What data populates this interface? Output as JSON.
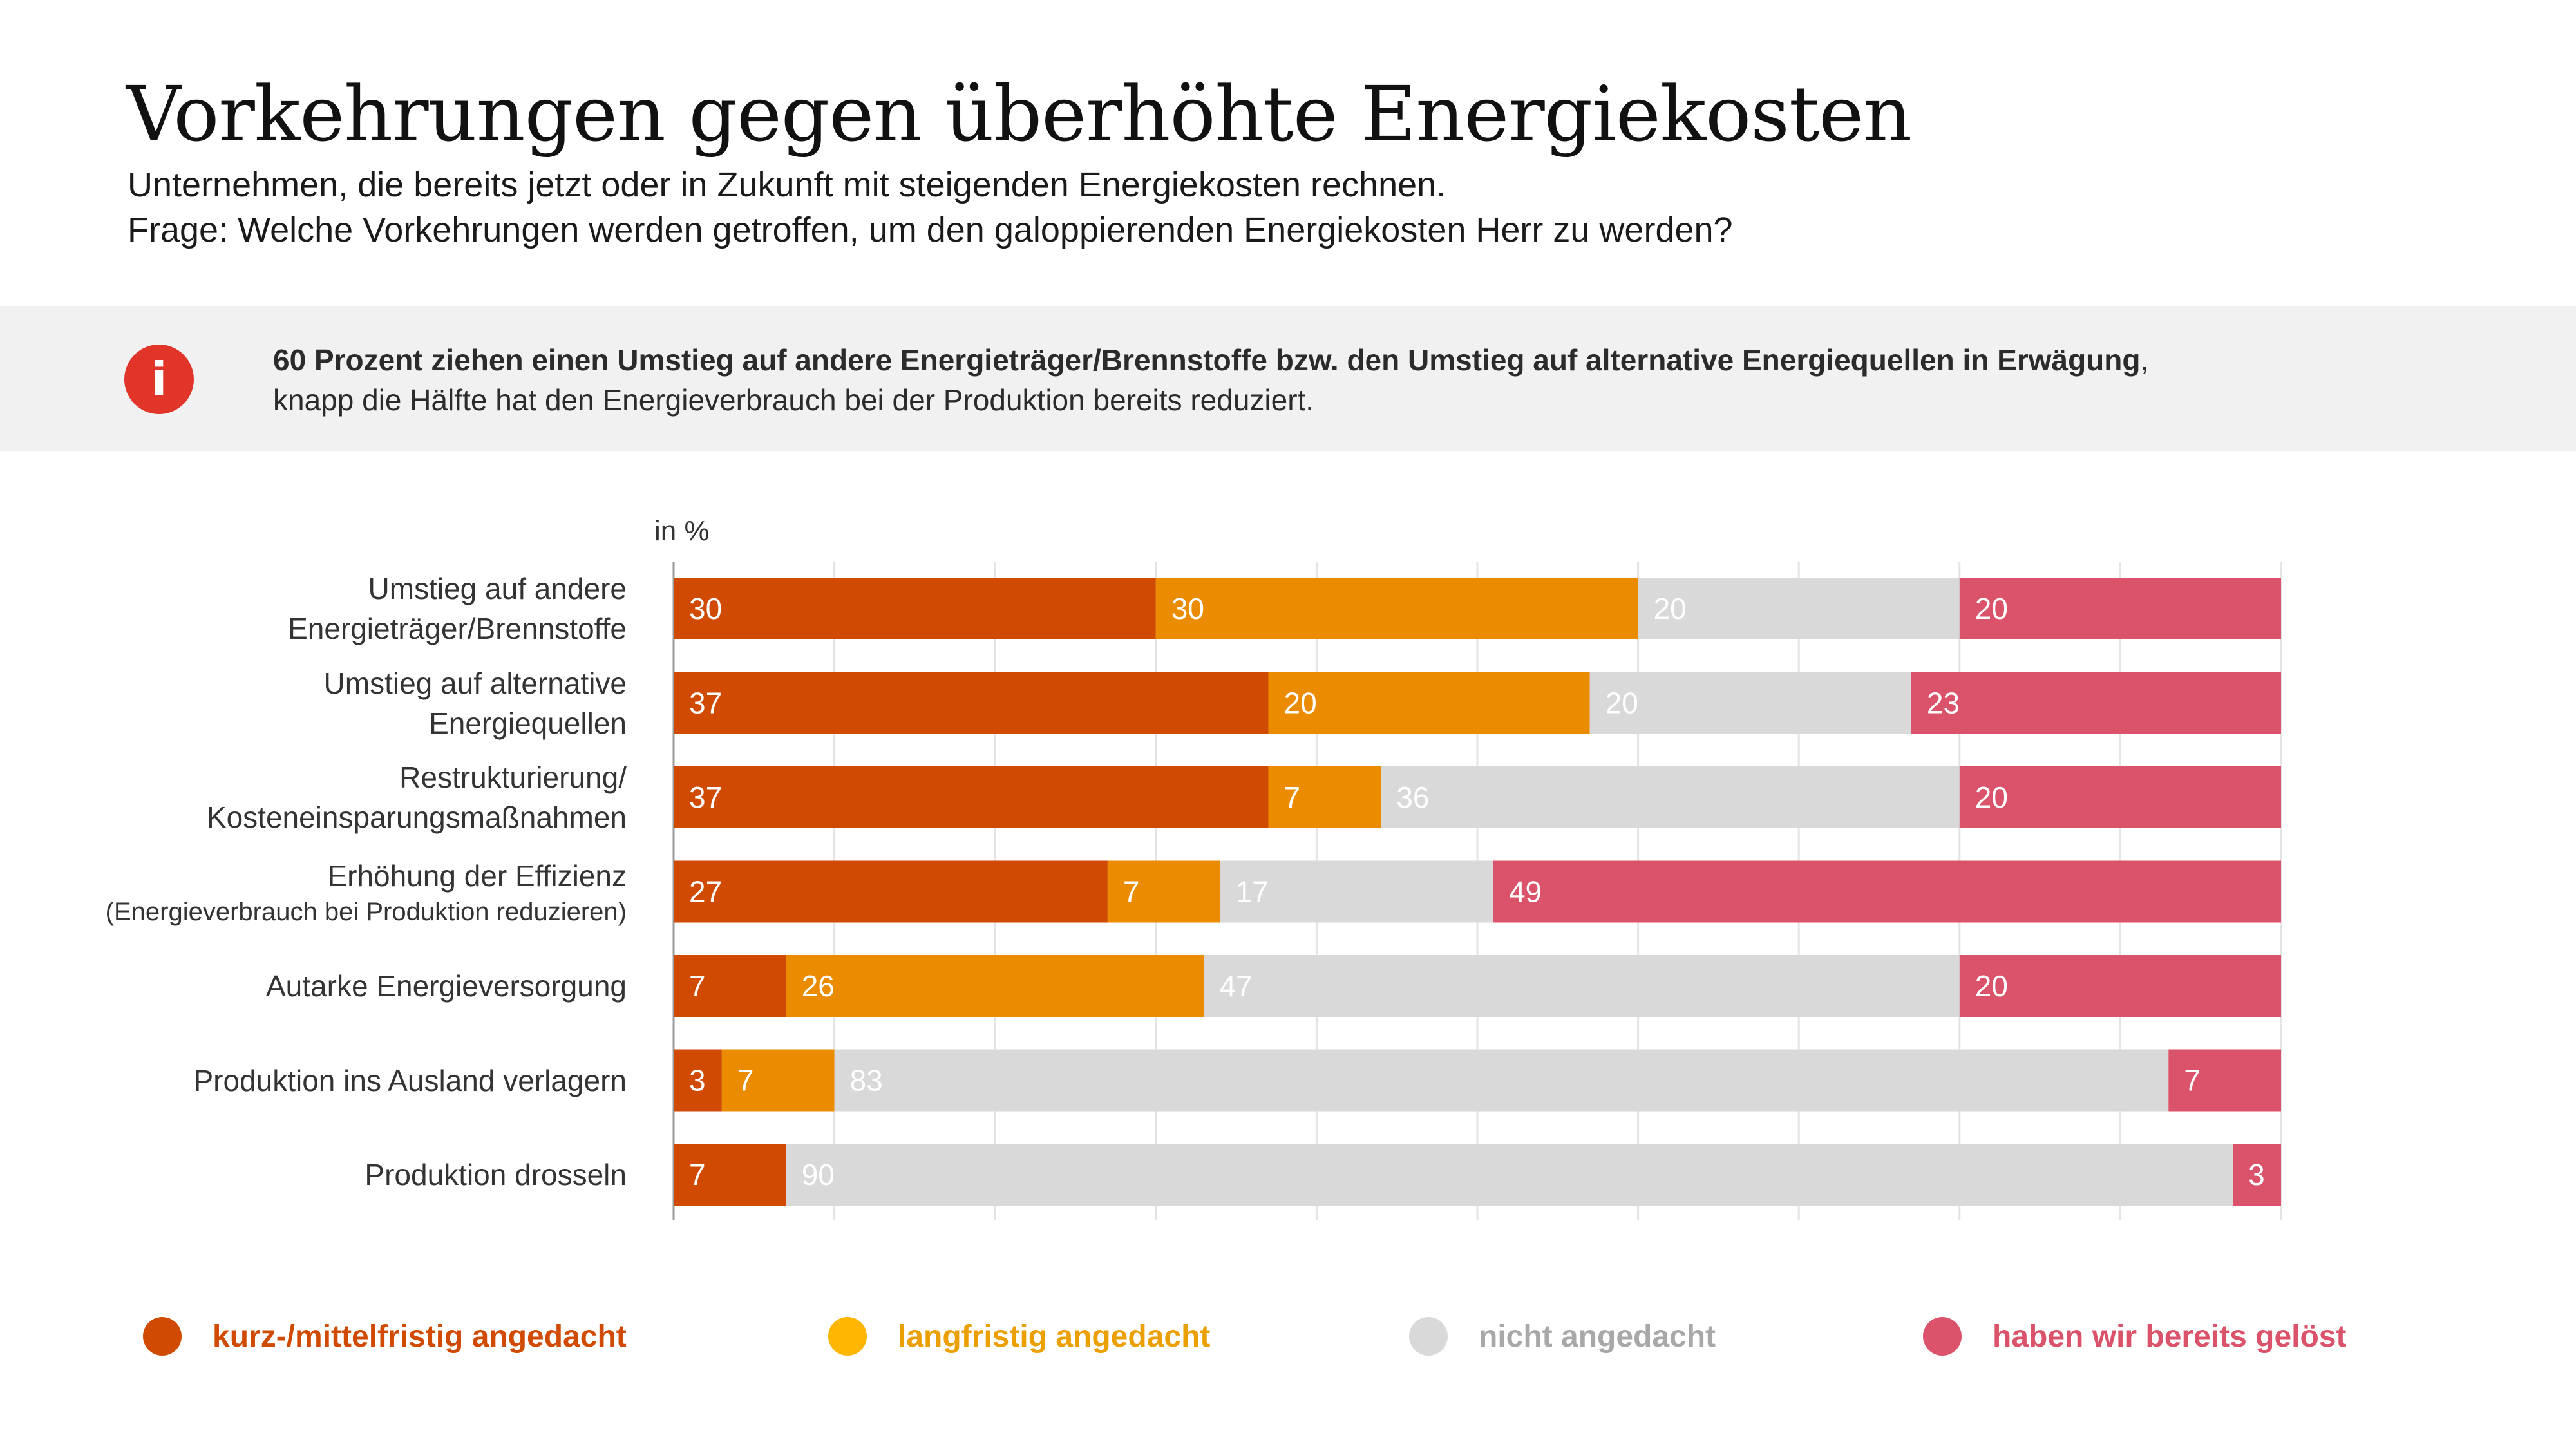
{
  "header": {
    "title": "Vorkehrungen gegen überhöhte Energiekosten",
    "subtitle_line1": "Unternehmen, die bereits jetzt oder in Zukunft mit steigenden Energiekosten rechnen.",
    "subtitle_line2": "Frage: Welche Vorkehrungen werden getroffen, um den galoppierenden Energiekosten Herr zu werden?"
  },
  "banner": {
    "icon": "info-icon",
    "line1_bold": "60 Prozent ziehen einen Umstieg auf andere Energieträger/Brennstoffe bzw. den Umstieg auf alternative Energiequellen in Erwägung",
    "line1_rest": ",",
    "line2": "knapp die Hälfte hat den Energieverbrauch bei der Produktion bereits reduziert."
  },
  "chart_data": {
    "type": "bar",
    "orientation": "horizontal",
    "stacked": true,
    "unit_label": "in %",
    "xlim": [
      0,
      100
    ],
    "grid": true,
    "legend_position": "bottom",
    "categories": [
      {
        "line1": "Umstieg auf andere",
        "line2": "Energieträger/Brennstoffe",
        "sub": ""
      },
      {
        "line1": "Umstieg auf alternative",
        "line2": "Energiequellen",
        "sub": ""
      },
      {
        "line1": "Restrukturierung/",
        "line2": "Kosteneinsparungsmaßnahmen",
        "sub": ""
      },
      {
        "line1": "Erhöhung der Effizienz",
        "line2": "",
        "sub": "(Energieverbrauch bei Produktion reduzieren)"
      },
      {
        "line1": "Autarke Energieversorgung",
        "line2": "",
        "sub": ""
      },
      {
        "line1": "Produktion ins Ausland verlagern",
        "line2": "",
        "sub": ""
      },
      {
        "line1": "Produktion drosseln",
        "line2": "",
        "sub": ""
      }
    ],
    "series": [
      {
        "name": "kurz-/mittelfristig angedacht",
        "color": "#d04a02",
        "legend_color": "#d04a02",
        "text_color": "#d04a02",
        "values": [
          30,
          37,
          37,
          27,
          7,
          3,
          7
        ]
      },
      {
        "name": "langfristig angedacht",
        "color": "#eb8c00",
        "legend_color": "#ffb600",
        "text_color": "#eb9f00",
        "values": [
          30,
          20,
          7,
          7,
          26,
          7,
          0
        ]
      },
      {
        "name": "nicht angedacht",
        "color": "#d9d9d9",
        "legend_color": "#d9d9d9",
        "text_color": "#a8a8a8",
        "values": [
          20,
          20,
          36,
          17,
          47,
          83,
          90
        ]
      },
      {
        "name": "haben wir bereits gelöst",
        "color": "#db536a",
        "legend_color": "#db536a",
        "text_color": "#db536a",
        "values": [
          20,
          23,
          20,
          49,
          20,
          7,
          3
        ]
      }
    ]
  }
}
